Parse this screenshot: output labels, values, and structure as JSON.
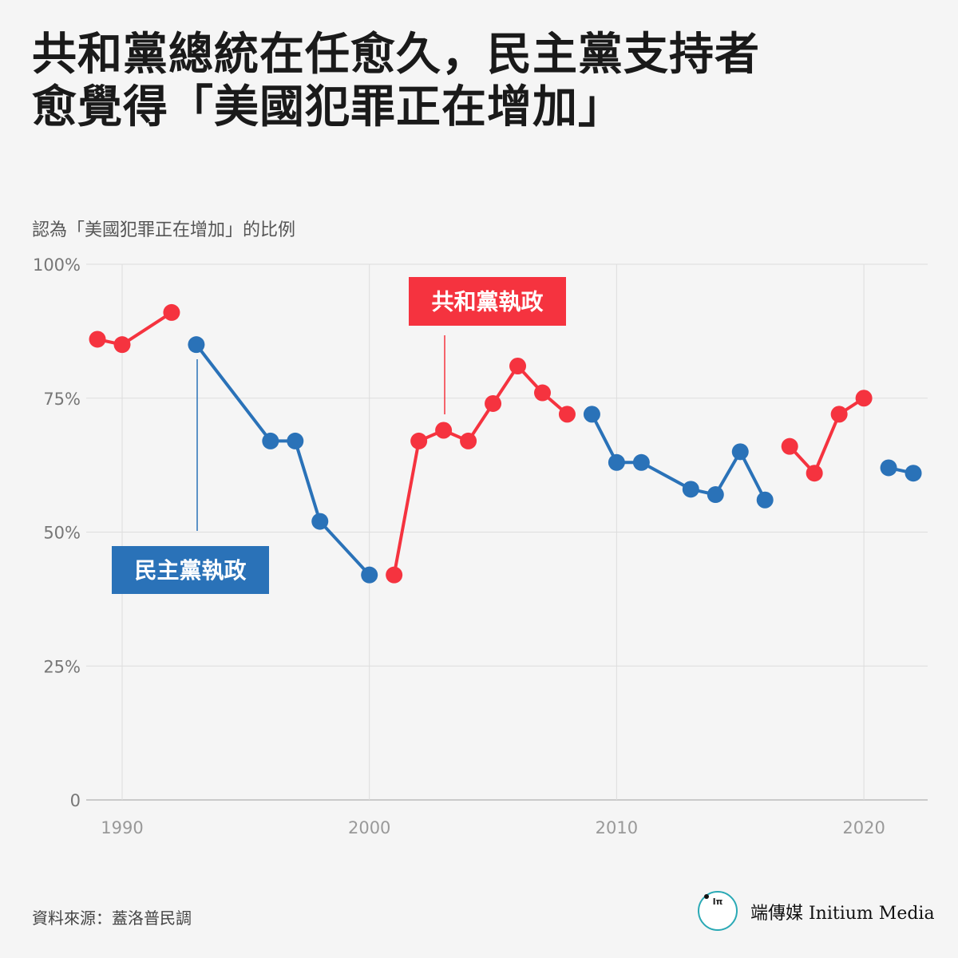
{
  "title_lines": [
    "共和黨總統在任愈久，民主黨支持者",
    "愈覺得「美國犯罪正在增加」"
  ],
  "subtitle": "認為「美國犯罪正在增加」的比例",
  "source": "資料來源：蓋洛普民調",
  "logo": {
    "name": "端傳媒 Initium Media",
    "mark": "Iπ",
    "icon": "initium-logo-icon"
  },
  "colors": {
    "republican": "#f5333f",
    "democrat": "#2a72b8",
    "grid": "#dddddd",
    "axis": "#bbbbbb"
  },
  "chart_data": {
    "type": "line",
    "title": "",
    "xlabel": "",
    "ylabel": "認為「美國犯罪正在增加」的比例",
    "xlim": [
      1989,
      2022.6
    ],
    "ylim": [
      0,
      100
    ],
    "x_ticks": [
      1990,
      2000,
      2010,
      2020
    ],
    "y_ticks": [
      0,
      25,
      50,
      75,
      100
    ],
    "y_tick_labels": [
      "0",
      "25%",
      "50%",
      "75%",
      "100%"
    ],
    "grid": true,
    "series": [
      {
        "party": "republican",
        "x": [
          1989,
          1990,
          1992
        ],
        "y": [
          86,
          85,
          91
        ]
      },
      {
        "party": "democrat",
        "x": [
          1993,
          1996,
          1997,
          1998,
          2000
        ],
        "y": [
          85,
          67,
          67,
          52,
          42
        ]
      },
      {
        "party": "republican",
        "x": [
          2001,
          2002,
          2003,
          2004,
          2005,
          2006,
          2007,
          2008
        ],
        "y": [
          42,
          67,
          69,
          67,
          74,
          81,
          76,
          72
        ]
      },
      {
        "party": "democrat",
        "x": [
          2009,
          2010,
          2011,
          2013,
          2014,
          2015,
          2016
        ],
        "y": [
          72,
          63,
          63,
          58,
          57,
          65,
          56
        ]
      },
      {
        "party": "republican",
        "x": [
          2017,
          2018,
          2019,
          2020
        ],
        "y": [
          66,
          61,
          72,
          75
        ]
      },
      {
        "party": "democrat",
        "x": [
          2021,
          2022
        ],
        "y": [
          62,
          61
        ]
      }
    ],
    "annotations": [
      {
        "text": "共和黨執政",
        "party": "republican",
        "x": 2003,
        "y": 69
      },
      {
        "text": "民主黨執政",
        "party": "democrat",
        "x": 1993,
        "y": 85
      }
    ]
  }
}
